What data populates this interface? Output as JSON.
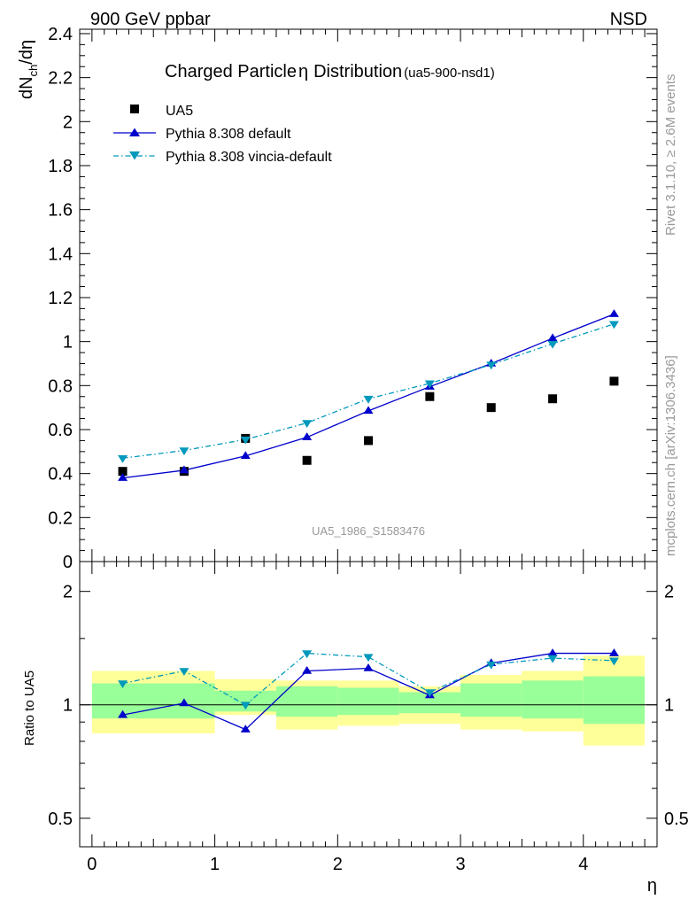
{
  "header": {
    "left_label": "900 GeV ppbar",
    "right_label": "NSD"
  },
  "side_labels": {
    "rivet": "Rivet 3.1.10, ≥ 2.6M events",
    "mcplots": "mcplots.cern.ch [arXiv:1306.3436]"
  },
  "chart_data": [
    {
      "type": "scatter",
      "title": "Charged Particle η Distribution",
      "title_main": "Charged Particle",
      "title_symbol": "η",
      "title_main2": "Distribution",
      "title_suffix": "(ua5-900-nsd1)",
      "watermark": "UA5_1986_S1583476",
      "ylabel": "dNch/dη",
      "ylim": [
        0,
        2.42
      ],
      "yticks": [
        0,
        0.2,
        0.4,
        0.6,
        0.8,
        1,
        1.2,
        1.4,
        1.6,
        1.8,
        2,
        2.2,
        2.4
      ],
      "ytick_labels": [
        "0",
        "0.2",
        "0.4",
        "0.6",
        "0.8",
        "1",
        "1.2",
        "1.4",
        "1.6",
        "1.8",
        "2",
        "2.2",
        "2.4"
      ],
      "xlim": [
        -0.1,
        4.6
      ],
      "x": [
        0.25,
        0.75,
        1.25,
        1.75,
        2.25,
        2.75,
        3.25,
        3.75,
        4.25
      ],
      "legend_position": "top-left",
      "series": [
        {
          "name": "UA5",
          "style": "markers",
          "marker": "square",
          "color": "#000000",
          "values": [
            0.41,
            0.41,
            0.56,
            0.46,
            0.55,
            0.75,
            0.7,
            0.74,
            0.82
          ]
        },
        {
          "name": "Pythia 8.308 default",
          "style": "solid",
          "marker": "triangle-up",
          "color": "#0000cc",
          "values": [
            0.38,
            0.415,
            0.48,
            0.565,
            0.685,
            0.795,
            0.9,
            1.015,
            1.125
          ]
        },
        {
          "name": "Pythia 8.308 vincia-default",
          "style": "dashdot",
          "marker": "triangle-down",
          "color": "#0099bb",
          "values": [
            0.47,
            0.505,
            0.555,
            0.63,
            0.74,
            0.81,
            0.895,
            0.99,
            1.08
          ]
        }
      ]
    },
    {
      "type": "line",
      "ylabel": "Ratio to UA5",
      "xlabel": "η",
      "scale": "log",
      "ylim": [
        0.42,
        2.4
      ],
      "yticks": [
        0.5,
        1,
        2
      ],
      "ytick_labels": [
        "0.5",
        "1",
        "2"
      ],
      "xlim": [
        -0.1,
        4.6
      ],
      "xticks": [
        0,
        1,
        2,
        3,
        4
      ],
      "xtick_labels": [
        "0",
        "1",
        "2",
        "3",
        "4"
      ],
      "x": [
        0.25,
        0.75,
        1.25,
        1.75,
        2.25,
        2.75,
        3.25,
        3.75,
        4.25
      ],
      "bins": [
        [
          0,
          1
        ],
        [
          1,
          1.5
        ],
        [
          1.5,
          2
        ],
        [
          2,
          2.5
        ],
        [
          2.5,
          3
        ],
        [
          3,
          3.5
        ],
        [
          3.5,
          4
        ],
        [
          4,
          4.5
        ]
      ],
      "band_yellow": [
        [
          0.84,
          1.23
        ],
        [
          0.94,
          1.17
        ],
        [
          0.86,
          1.16
        ],
        [
          0.88,
          1.16
        ],
        [
          0.89,
          1.12
        ],
        [
          0.86,
          1.2
        ],
        [
          0.85,
          1.23
        ],
        [
          0.78,
          1.35
        ]
      ],
      "band_green": [
        [
          0.92,
          1.14
        ],
        [
          0.96,
          1.09
        ],
        [
          0.93,
          1.12
        ],
        [
          0.94,
          1.11
        ],
        [
          0.95,
          1.08
        ],
        [
          0.93,
          1.14
        ],
        [
          0.92,
          1.16
        ],
        [
          0.89,
          1.19
        ]
      ],
      "band_colors": {
        "yellow": "#ffff99",
        "green": "#99ff99"
      },
      "series": [
        {
          "name": "Pythia 8.308 default",
          "color": "#0000cc",
          "marker": "triangle-up",
          "values": [
            0.94,
            1.01,
            0.86,
            1.23,
            1.25,
            1.06,
            1.29,
            1.37,
            1.37
          ]
        },
        {
          "name": "Pythia 8.308 vincia-default",
          "color": "#0099bb",
          "marker": "triangle-down",
          "values": [
            1.14,
            1.23,
            1.0,
            1.37,
            1.34,
            1.08,
            1.28,
            1.33,
            1.31
          ]
        }
      ]
    }
  ]
}
